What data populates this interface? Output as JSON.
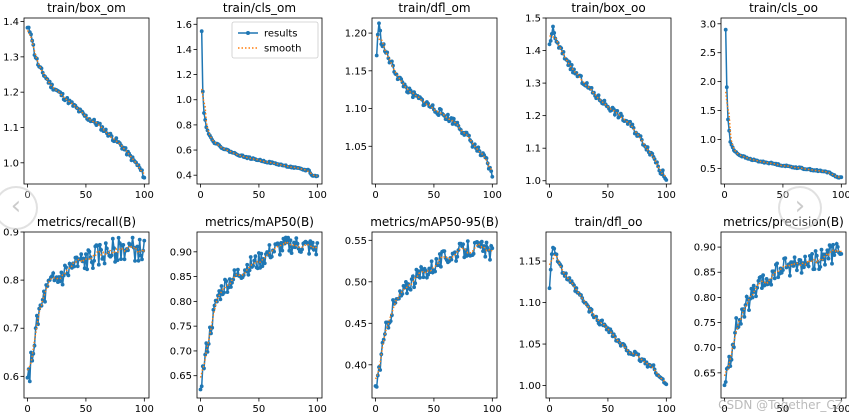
{
  "chart_data": [
    {
      "type": "line",
      "title": "train/box_om",
      "xlim": [
        -3,
        104
      ],
      "ylim": [
        0.94,
        1.41
      ],
      "xticks": [
        0,
        50,
        100
      ],
      "yticks": [
        1.0,
        1.1,
        1.2,
        1.3,
        1.4
      ],
      "ytick_labels": [
        "1.0",
        "1.1",
        "1.2",
        "1.3",
        "1.4"
      ],
      "anchors": [
        [
          0,
          1.38
        ],
        [
          3,
          1.37
        ],
        [
          6,
          1.31
        ],
        [
          10,
          1.27
        ],
        [
          20,
          1.22
        ],
        [
          30,
          1.19
        ],
        [
          40,
          1.16
        ],
        [
          50,
          1.13
        ],
        [
          60,
          1.11
        ],
        [
          70,
          1.08
        ],
        [
          80,
          1.05
        ],
        [
          90,
          1.01
        ],
        [
          95,
          0.99
        ],
        [
          100,
          0.96
        ]
      ],
      "noise": 0.008,
      "seed": 11
    },
    {
      "type": "line",
      "title": "train/cls_om",
      "xlim": [
        -3,
        104
      ],
      "ylim": [
        0.33,
        1.65
      ],
      "xticks": [
        0,
        50,
        100
      ],
      "yticks": [
        0.4,
        0.6,
        0.8,
        1.0,
        1.2,
        1.4,
        1.6
      ],
      "ytick_labels": [
        "0.4",
        "0.6",
        "0.8",
        "1.0",
        "1.2",
        "1.4",
        "1.6"
      ],
      "anchors": [
        [
          1,
          1.55
        ],
        [
          2,
          1.07
        ],
        [
          3,
          0.9
        ],
        [
          5,
          0.78
        ],
        [
          8,
          0.71
        ],
        [
          12,
          0.66
        ],
        [
          20,
          0.61
        ],
        [
          30,
          0.57
        ],
        [
          40,
          0.54
        ],
        [
          50,
          0.52
        ],
        [
          60,
          0.5
        ],
        [
          70,
          0.48
        ],
        [
          80,
          0.46
        ],
        [
          90,
          0.44
        ],
        [
          93,
          0.44
        ],
        [
          95,
          0.4
        ],
        [
          100,
          0.39
        ]
      ],
      "noise": 0.006,
      "seed": 22,
      "legend": {
        "entries": [
          "results",
          "smooth"
        ],
        "placement": "top-right"
      }
    },
    {
      "type": "line",
      "title": "train/dfl_om",
      "xlim": [
        -3,
        104
      ],
      "ylim": [
        1.0,
        1.22
      ],
      "xticks": [
        0,
        50,
        100
      ],
      "yticks": [
        1.05,
        1.1,
        1.15,
        1.2
      ],
      "ytick_labels": [
        "1.05",
        "1.10",
        "1.15",
        "1.20"
      ],
      "anchors": [
        [
          1,
          1.17
        ],
        [
          2,
          1.2
        ],
        [
          3,
          1.21
        ],
        [
          5,
          1.19
        ],
        [
          10,
          1.17
        ],
        [
          20,
          1.14
        ],
        [
          30,
          1.12
        ],
        [
          40,
          1.11
        ],
        [
          50,
          1.1
        ],
        [
          60,
          1.09
        ],
        [
          70,
          1.08
        ],
        [
          80,
          1.06
        ],
        [
          90,
          1.04
        ],
        [
          95,
          1.03
        ],
        [
          100,
          1.01
        ]
      ],
      "noise": 0.005,
      "seed": 33
    },
    {
      "type": "line",
      "title": "train/box_oo",
      "xlim": [
        -3,
        104
      ],
      "ylim": [
        0.99,
        1.5
      ],
      "xticks": [
        0,
        50,
        100
      ],
      "yticks": [
        1.0,
        1.1,
        1.2,
        1.3,
        1.4,
        1.5
      ],
      "ytick_labels": [
        "1.0",
        "1.1",
        "1.2",
        "1.3",
        "1.4",
        "1.5"
      ],
      "anchors": [
        [
          0,
          1.41
        ],
        [
          2,
          1.45
        ],
        [
          3,
          1.48
        ],
        [
          5,
          1.43
        ],
        [
          10,
          1.4
        ],
        [
          20,
          1.34
        ],
        [
          30,
          1.3
        ],
        [
          40,
          1.26
        ],
        [
          50,
          1.23
        ],
        [
          60,
          1.2
        ],
        [
          70,
          1.17
        ],
        [
          80,
          1.12
        ],
        [
          90,
          1.07
        ],
        [
          95,
          1.03
        ],
        [
          100,
          1.01
        ]
      ],
      "noise": 0.01,
      "seed": 44
    },
    {
      "type": "line",
      "title": "train/cls_oo",
      "xlim": [
        -3,
        104
      ],
      "ylim": [
        0.23,
        3.1
      ],
      "xticks": [
        0,
        50,
        100
      ],
      "yticks": [
        0.5,
        1.0,
        1.5,
        2.0,
        2.5,
        3.0
      ],
      "ytick_labels": [
        "0.5",
        "1.0",
        "1.5",
        "2.0",
        "2.5",
        "3.0"
      ],
      "anchors": [
        [
          1,
          2.9
        ],
        [
          2,
          1.9
        ],
        [
          3,
          1.35
        ],
        [
          5,
          0.95
        ],
        [
          8,
          0.82
        ],
        [
          12,
          0.74
        ],
        [
          20,
          0.67
        ],
        [
          30,
          0.62
        ],
        [
          40,
          0.59
        ],
        [
          50,
          0.55
        ],
        [
          60,
          0.52
        ],
        [
          70,
          0.49
        ],
        [
          80,
          0.46
        ],
        [
          90,
          0.43
        ],
        [
          95,
          0.36
        ],
        [
          100,
          0.34
        ]
      ],
      "noise": 0.012,
      "seed": 55
    },
    {
      "type": "line",
      "title": "metrics/recall(B)",
      "xlim": [
        -3,
        104
      ],
      "ylim": [
        0.555,
        0.9
      ],
      "xticks": [
        0,
        50,
        100
      ],
      "yticks": [
        0.6,
        0.7,
        0.8,
        0.9
      ],
      "ytick_labels": [
        "0.6",
        "0.7",
        "0.8",
        "0.9"
      ],
      "anchors": [
        [
          0,
          0.58
        ],
        [
          5,
          0.66
        ],
        [
          10,
          0.73
        ],
        [
          15,
          0.77
        ],
        [
          20,
          0.79
        ],
        [
          30,
          0.81
        ],
        [
          40,
          0.83
        ],
        [
          50,
          0.84
        ],
        [
          60,
          0.85
        ],
        [
          70,
          0.86
        ],
        [
          80,
          0.865
        ],
        [
          90,
          0.865
        ],
        [
          100,
          0.86
        ]
      ],
      "noise": 0.025,
      "seed": 66
    },
    {
      "type": "line",
      "title": "metrics/mAP50(B)",
      "xlim": [
        -3,
        104
      ],
      "ylim": [
        0.605,
        0.94
      ],
      "xticks": [
        0,
        50,
        100
      ],
      "yticks": [
        0.65,
        0.7,
        0.75,
        0.8,
        0.85,
        0.9
      ],
      "ytick_labels": [
        "0.65",
        "0.70",
        "0.75",
        "0.80",
        "0.85",
        "0.90"
      ],
      "anchors": [
        [
          0,
          0.63
        ],
        [
          5,
          0.7
        ],
        [
          10,
          0.76
        ],
        [
          15,
          0.81
        ],
        [
          20,
          0.83
        ],
        [
          30,
          0.85
        ],
        [
          40,
          0.87
        ],
        [
          50,
          0.88
        ],
        [
          60,
          0.9
        ],
        [
          70,
          0.91
        ],
        [
          80,
          0.915
        ],
        [
          90,
          0.91
        ],
        [
          100,
          0.905
        ]
      ],
      "noise": 0.018,
      "seed": 77
    },
    {
      "type": "line",
      "title": "metrics/mAP50-95(B)",
      "xlim": [
        -3,
        104
      ],
      "ylim": [
        0.36,
        0.56
      ],
      "xticks": [
        0,
        50,
        100
      ],
      "yticks": [
        0.4,
        0.45,
        0.5,
        0.55
      ],
      "ytick_labels": [
        "0.40",
        "0.45",
        "0.50",
        "0.55"
      ],
      "anchors": [
        [
          0,
          0.37
        ],
        [
          5,
          0.41
        ],
        [
          10,
          0.45
        ],
        [
          15,
          0.47
        ],
        [
          20,
          0.48
        ],
        [
          30,
          0.5
        ],
        [
          40,
          0.51
        ],
        [
          50,
          0.52
        ],
        [
          60,
          0.53
        ],
        [
          70,
          0.535
        ],
        [
          80,
          0.54
        ],
        [
          90,
          0.54
        ],
        [
          100,
          0.535
        ]
      ],
      "noise": 0.01,
      "seed": 88
    },
    {
      "type": "line",
      "title": "train/dfl_oo",
      "xlim": [
        -3,
        104
      ],
      "ylim": [
        0.985,
        1.185
      ],
      "xticks": [
        0,
        50,
        100
      ],
      "yticks": [
        1.0,
        1.05,
        1.1,
        1.15
      ],
      "ytick_labels": [
        "1.00",
        "1.05",
        "1.10",
        "1.15"
      ],
      "anchors": [
        [
          0,
          1.12
        ],
        [
          2,
          1.16
        ],
        [
          3,
          1.17
        ],
        [
          5,
          1.16
        ],
        [
          10,
          1.14
        ],
        [
          20,
          1.12
        ],
        [
          30,
          1.1
        ],
        [
          40,
          1.08
        ],
        [
          50,
          1.07
        ],
        [
          60,
          1.05
        ],
        [
          70,
          1.04
        ],
        [
          80,
          1.03
        ],
        [
          90,
          1.02
        ],
        [
          95,
          1.01
        ],
        [
          100,
          1.0
        ]
      ],
      "noise": 0.004,
      "seed": 99
    },
    {
      "type": "line",
      "title": "metrics/precision(B)",
      "xlim": [
        -3,
        104
      ],
      "ylim": [
        0.6,
        0.93
      ],
      "xticks": [
        0,
        50,
        100
      ],
      "yticks": [
        0.65,
        0.7,
        0.75,
        0.8,
        0.85,
        0.9
      ],
      "ytick_labels": [
        "0.65",
        "0.70",
        "0.75",
        "0.80",
        "0.85",
        "0.90"
      ],
      "anchors": [
        [
          0,
          0.62
        ],
        [
          5,
          0.68
        ],
        [
          10,
          0.74
        ],
        [
          15,
          0.76
        ],
        [
          20,
          0.79
        ],
        [
          30,
          0.82
        ],
        [
          40,
          0.84
        ],
        [
          50,
          0.86
        ],
        [
          60,
          0.865
        ],
        [
          70,
          0.87
        ],
        [
          80,
          0.875
        ],
        [
          90,
          0.885
        ],
        [
          100,
          0.89
        ]
      ],
      "noise": 0.02,
      "seed": 111
    }
  ],
  "legend": {
    "results_label": "results",
    "smooth_label": "smooth"
  },
  "colors": {
    "results": "#1f77b4",
    "smooth": "#ff7f0e"
  },
  "nav": {
    "prev_symbol": "‹",
    "next_symbol": "›"
  },
  "watermark": "CSDN @Together_CZ"
}
